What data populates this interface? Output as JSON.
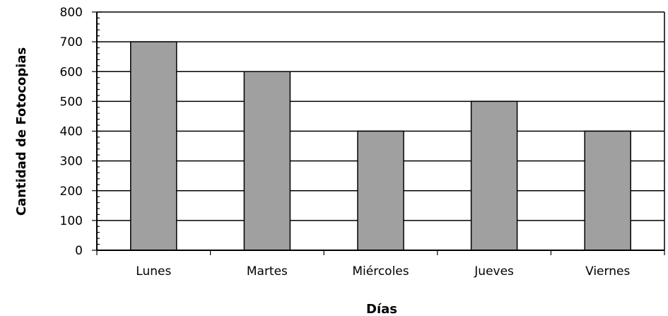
{
  "chart_data": {
    "type": "bar",
    "title": "",
    "xlabel": "Días",
    "ylabel": "Cantidad de Fotocopias",
    "categories": [
      "Lunes",
      "Martes",
      "Miércoles",
      "Jueves",
      "Viernes"
    ],
    "values": [
      700,
      600,
      400,
      500,
      400
    ],
    "ylim": [
      0,
      800
    ],
    "yticks": [
      "0",
      "100",
      "200",
      "300",
      "400",
      "500",
      "600",
      "700",
      "800"
    ],
    "grid": true,
    "legend": "none",
    "colors": {
      "bar_fill": "#a0a0a0",
      "bar_stroke": "#000000",
      "grid": "#000000",
      "axis": "#000000"
    }
  }
}
